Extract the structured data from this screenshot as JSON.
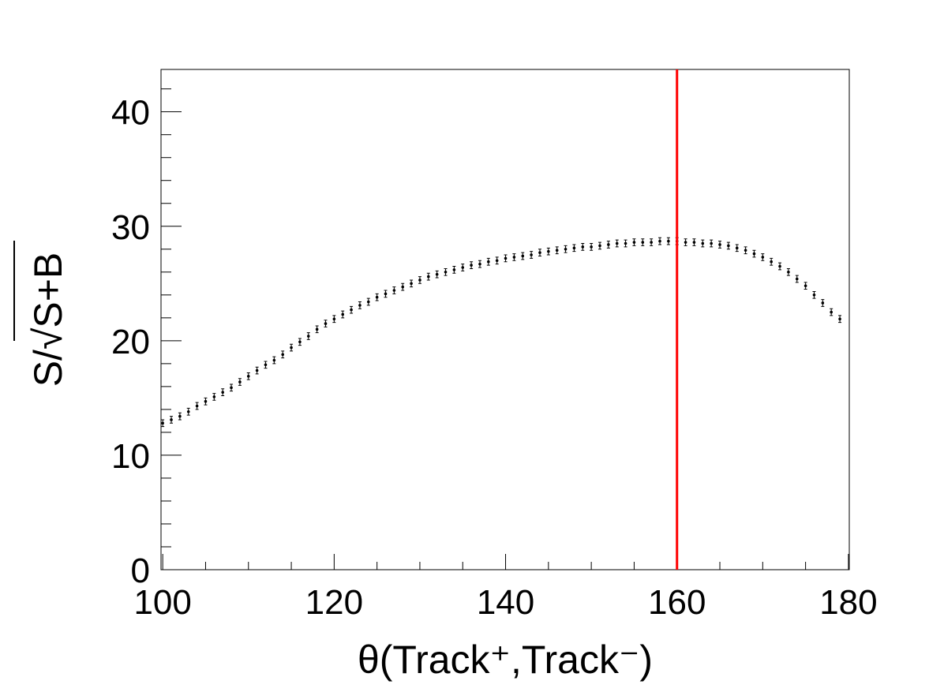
{
  "chart_data": {
    "type": "errorbar",
    "xlabel": "θ(Track⁺,Track⁻)",
    "ylabel": "S/√S+B",
    "x": [
      100,
      101,
      102,
      103,
      104,
      105,
      106,
      107,
      108,
      109,
      110,
      111,
      112,
      113,
      114,
      115,
      116,
      117,
      118,
      119,
      120,
      121,
      122,
      123,
      124,
      125,
      126,
      127,
      128,
      129,
      130,
      131,
      132,
      133,
      134,
      135,
      136,
      137,
      138,
      139,
      140,
      141,
      142,
      143,
      144,
      145,
      146,
      147,
      148,
      149,
      150,
      151,
      152,
      153,
      154,
      155,
      156,
      157,
      158,
      159,
      160,
      161,
      162,
      163,
      164,
      165,
      166,
      167,
      168,
      169,
      170,
      171,
      172,
      173,
      174,
      175,
      176,
      177,
      178,
      179
    ],
    "values": [
      12.8,
      13.1,
      13.4,
      13.8,
      14.3,
      14.7,
      15.1,
      15.5,
      15.9,
      16.4,
      16.9,
      17.4,
      17.9,
      18.3,
      18.8,
      19.4,
      19.9,
      20.4,
      21.0,
      21.5,
      21.9,
      22.3,
      22.7,
      23.1,
      23.4,
      23.8,
      24.1,
      24.4,
      24.7,
      25.0,
      25.3,
      25.6,
      25.8,
      26.0,
      26.2,
      26.4,
      26.6,
      26.7,
      26.9,
      27.0,
      27.2,
      27.3,
      27.4,
      27.5,
      27.7,
      27.8,
      27.9,
      28.0,
      28.1,
      28.2,
      28.2,
      28.3,
      28.4,
      28.5,
      28.5,
      28.6,
      28.6,
      28.6,
      28.7,
      28.7,
      28.7,
      28.6,
      28.6,
      28.5,
      28.5,
      28.4,
      28.3,
      28.1,
      27.9,
      27.6,
      27.3,
      26.9,
      26.5,
      26.0,
      25.4,
      24.8,
      24.0,
      23.3,
      22.5,
      21.9
    ],
    "errors": [
      0.3,
      0.3,
      0.3,
      0.3,
      0.3,
      0.3,
      0.3,
      0.3,
      0.3,
      0.3,
      0.3,
      0.3,
      0.3,
      0.3,
      0.3,
      0.3,
      0.3,
      0.3,
      0.3,
      0.3,
      0.3,
      0.3,
      0.3,
      0.3,
      0.3,
      0.3,
      0.3,
      0.3,
      0.3,
      0.3,
      0.3,
      0.3,
      0.3,
      0.3,
      0.3,
      0.3,
      0.3,
      0.3,
      0.3,
      0.3,
      0.3,
      0.3,
      0.3,
      0.3,
      0.3,
      0.3,
      0.3,
      0.3,
      0.3,
      0.3,
      0.3,
      0.3,
      0.3,
      0.3,
      0.3,
      0.3,
      0.3,
      0.3,
      0.3,
      0.3,
      0.3,
      0.3,
      0.3,
      0.3,
      0.3,
      0.3,
      0.3,
      0.3,
      0.3,
      0.3,
      0.3,
      0.3,
      0.3,
      0.3,
      0.3,
      0.3,
      0.3,
      0.3,
      0.3,
      0.3
    ],
    "color": "#000000",
    "xlim": [
      99.8,
      180.1
    ],
    "ylim": [
      0,
      43.7
    ],
    "xticks": [
      100,
      120,
      140,
      160,
      180
    ],
    "yticks": [
      0,
      10,
      20,
      30,
      40
    ],
    "xminor_ticks": [
      105,
      110,
      115,
      125,
      130,
      135,
      145,
      150,
      155,
      165,
      170,
      175
    ],
    "yminor_ticks": [
      2,
      4,
      6,
      8,
      12,
      14,
      16,
      18,
      22,
      24,
      26,
      28,
      32,
      34,
      36,
      38,
      42
    ],
    "vline": {
      "x": 160,
      "color": "#ff0000"
    }
  }
}
